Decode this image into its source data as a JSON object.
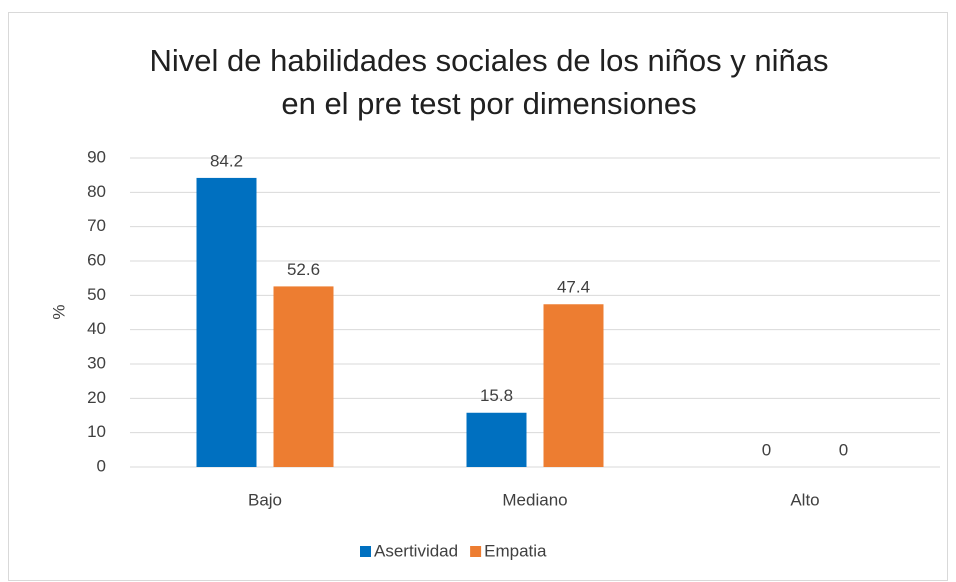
{
  "chart_data": {
    "type": "bar",
    "title": [
      "Nivel de habilidades sociales de los niños y niñas",
      "en el pre test por dimensiones"
    ],
    "y_label": "%",
    "categories": [
      "Bajo",
      "Mediano",
      "Alto"
    ],
    "series": [
      {
        "name": "Asertividad",
        "color": "#0070c0",
        "values": [
          84.2,
          15.8,
          0
        ]
      },
      {
        "name": "Empatia",
        "color": "#ed7d31",
        "values": [
          52.6,
          47.4,
          0
        ]
      }
    ],
    "ylim": [
      0,
      90
    ],
    "yticks": [
      0,
      10,
      20,
      30,
      40,
      50,
      60,
      70,
      80,
      90
    ],
    "grid": true,
    "legend": "bottom"
  }
}
